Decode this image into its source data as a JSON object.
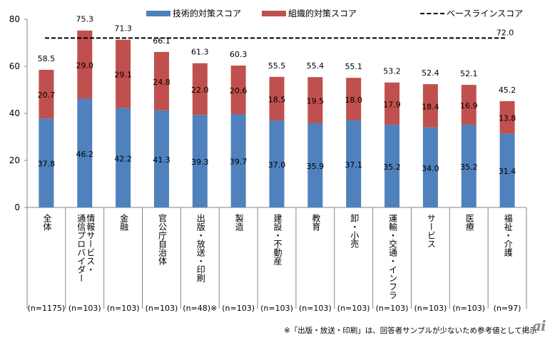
{
  "chart_data": {
    "type": "bar",
    "stacked": true,
    "title": "",
    "xlabel": "",
    "ylabel": "",
    "ylim": [
      0,
      80
    ],
    "yticks": [
      0,
      20,
      40,
      60,
      80
    ],
    "grid": false,
    "legend_position": "top",
    "categories": [
      "全体",
      "情報サービス・通信プロバイダー",
      "金融",
      "官公庁自治体",
      "出版・放送・印刷",
      "製造",
      "建設・不動産",
      "教育",
      "卸・小売",
      "運輸・交通・インフラ",
      "サービス",
      "医療",
      "福祉・介護"
    ],
    "category_label_lines": [
      [
        "全体"
      ],
      [
        "情報サービス・",
        "通信プロバイダー"
      ],
      [
        "金融"
      ],
      [
        "官公庁自治体"
      ],
      [
        "出版・放送・印刷"
      ],
      [
        "製造"
      ],
      [
        "建設・不動産"
      ],
      [
        "教育"
      ],
      [
        "卸・小売"
      ],
      [
        "運輸・交通・インフラ"
      ],
      [
        "サービス"
      ],
      [
        "医療"
      ],
      [
        "福祉・介護"
      ]
    ],
    "sample_sizes": [
      "(n=1175)",
      "(n=103)",
      "(n=103)",
      "(n=103)",
      "(n=48)※",
      "(n=103)",
      "(n=103)",
      "(n=103)",
      "(n=103)",
      "(n=103)",
      "(n=103)",
      "(n=103)",
      "(n=97)"
    ],
    "series": [
      {
        "name": "技術的対策スコア",
        "color": "#4F81BD",
        "values": [
          37.8,
          46.2,
          42.2,
          41.3,
          39.3,
          39.7,
          37.0,
          35.9,
          37.1,
          35.2,
          34.0,
          35.2,
          31.4
        ]
      },
      {
        "name": "組織的対策スコア",
        "color": "#C0504D",
        "values": [
          20.7,
          29.0,
          29.1,
          24.8,
          22.0,
          20.6,
          18.5,
          19.5,
          18.0,
          17.9,
          18.4,
          16.9,
          13.8
        ]
      }
    ],
    "totals": [
      58.5,
      75.3,
      71.3,
      66.1,
      61.3,
      60.3,
      55.5,
      55.4,
      55.1,
      53.2,
      52.4,
      52.1,
      45.2
    ],
    "baseline": {
      "name": "ベースラインスコア",
      "value": 72.0,
      "label": "72.0",
      "style": "dashed",
      "color": "#000000"
    }
  },
  "legend": {
    "tech": "技術的対策スコア",
    "org": "組織的対策スコア",
    "baseline": "ベースラインスコア"
  },
  "footnote": "※「出版・放送・印刷」は、回答者サンプルが少ないため参考値として掲示",
  "logo_text": "ai"
}
